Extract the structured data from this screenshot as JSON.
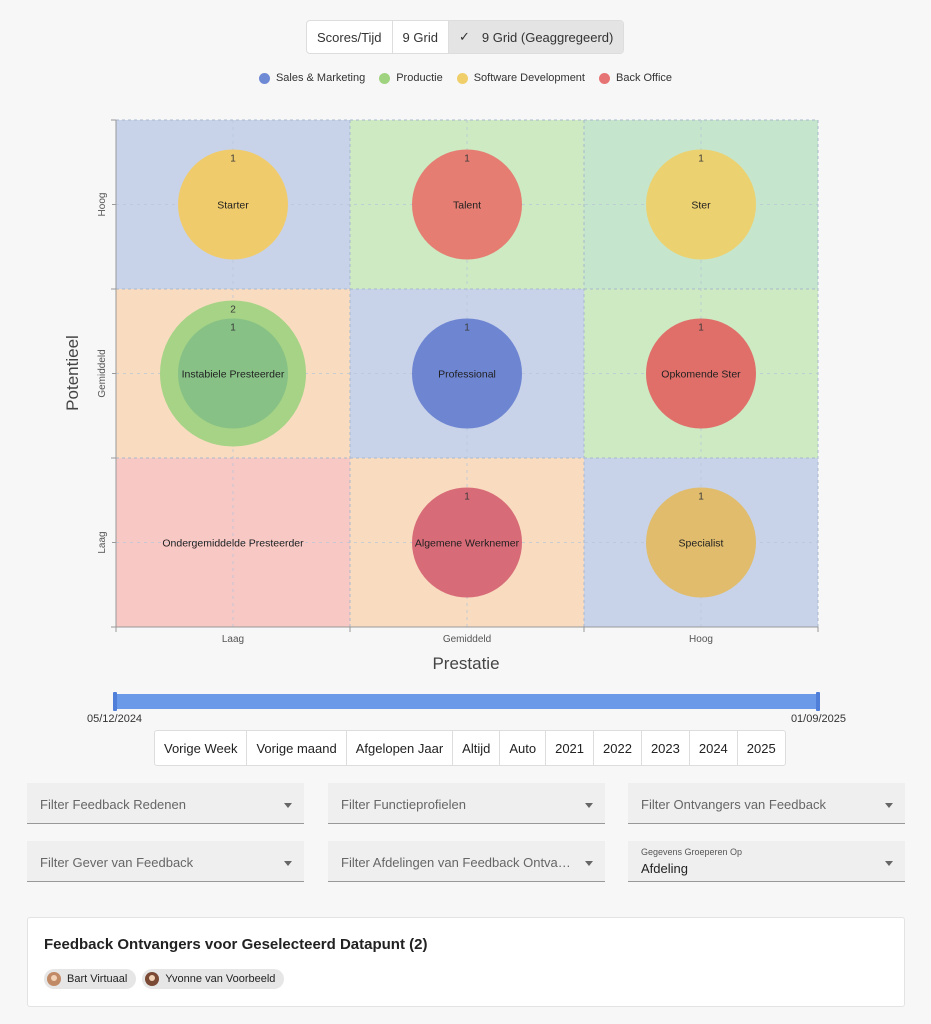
{
  "view_toggle": {
    "options": [
      "Scores/Tijd",
      "9 Grid",
      "9 Grid (Geaggregeerd)"
    ],
    "active_index": 2
  },
  "legend": [
    {
      "label": "Sales & Marketing",
      "color": "#6f8ad4"
    },
    {
      "label": "Productie",
      "color": "#9fd37f"
    },
    {
      "label": "Software Development",
      "color": "#f0cf6a"
    },
    {
      "label": "Back Office",
      "color": "#e77474"
    }
  ],
  "chart_data": {
    "type": "scatter",
    "title": "",
    "xlabel": "Prestatie",
    "ylabel": "Potentieel",
    "x_categories": [
      "Laag",
      "Gemiddeld",
      "Hoog"
    ],
    "y_categories": [
      "Laag",
      "Gemiddeld",
      "Hoog"
    ],
    "cells": [
      {
        "x": "Laag",
        "y": "Hoog",
        "label": "Starter",
        "bg": "#c8d3ea"
      },
      {
        "x": "Gemiddeld",
        "y": "Hoog",
        "label": "Talent",
        "bg": "#cdeac2"
      },
      {
        "x": "Hoog",
        "y": "Hoog",
        "label": "Ster",
        "bg": "#c5e6cc"
      },
      {
        "x": "Laag",
        "y": "Gemiddeld",
        "label": "Instabiele Presteerder",
        "bg": "#f9dcc0"
      },
      {
        "x": "Gemiddeld",
        "y": "Gemiddeld",
        "label": "Professional",
        "bg": "#c8d3ea"
      },
      {
        "x": "Hoog",
        "y": "Gemiddeld",
        "label": "Opkomende Ster",
        "bg": "#cdeac2"
      },
      {
        "x": "Laag",
        "y": "Laag",
        "label": "Ondergemiddelde Presteerder",
        "bg": "#f8c8c4"
      },
      {
        "x": "Gemiddeld",
        "y": "Laag",
        "label": "Algemene Werknemer",
        "bg": "#f9dcc0"
      },
      {
        "x": "Hoog",
        "y": "Laag",
        "label": "Specialist",
        "bg": "#c8d3ea"
      }
    ],
    "bubbles": [
      {
        "x": "Laag",
        "y": "Hoog",
        "count": 1,
        "color": "#f0cb6b"
      },
      {
        "x": "Gemiddeld",
        "y": "Hoog",
        "count": 1,
        "color": "#e57d72"
      },
      {
        "x": "Hoog",
        "y": "Hoog",
        "count": 1,
        "color": "#ecd170"
      },
      {
        "x": "Laag",
        "y": "Gemiddeld",
        "count": 2,
        "color": "#a6d385"
      },
      {
        "x": "Laag",
        "y": "Gemiddeld",
        "count": 1,
        "color": "#87c186"
      },
      {
        "x": "Gemiddeld",
        "y": "Gemiddeld",
        "count": 1,
        "color": "#6e85d2"
      },
      {
        "x": "Hoog",
        "y": "Gemiddeld",
        "count": 1,
        "color": "#e06f6a"
      },
      {
        "x": "Gemiddeld",
        "y": "Laag",
        "count": 1,
        "color": "#d86b78"
      },
      {
        "x": "Hoog",
        "y": "Laag",
        "count": 1,
        "color": "#e0bc6c"
      }
    ]
  },
  "timeline": {
    "start_date": "05/12/2024",
    "end_date": "01/09/2025"
  },
  "periods": [
    "Vorige Week",
    "Vorige maand",
    "Afgelopen Jaar",
    "Altijd",
    "Auto",
    "2021",
    "2022",
    "2023",
    "2024",
    "2025"
  ],
  "filters": {
    "feedback_redenen": "Filter Feedback Redenen",
    "functieprofielen": "Filter Functieprofielen",
    "ontvangers": "Filter Ontvangers van Feedback",
    "gever": "Filter Gever van Feedback",
    "afdelingen": "Filter Afdelingen van Feedback Ontvangers",
    "group_by_label": "Gegevens Groeperen Op",
    "group_by_value": "Afdeling"
  },
  "recipients_card": {
    "title": "Feedback Ontvangers voor Geselecteerd Datapunt (2)",
    "people": [
      "Bart Virtuaal",
      "Yvonne van Voorbeeld"
    ]
  }
}
